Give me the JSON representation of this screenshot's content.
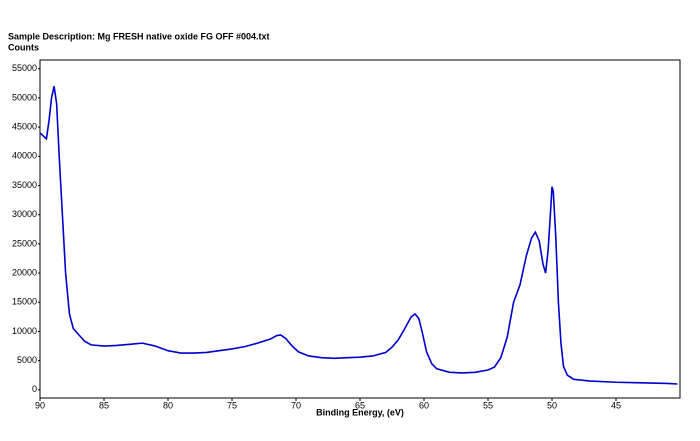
{
  "chart_data": {
    "type": "line",
    "title": "Sample Description: Mg FRESH native oxide FG OFF #004.txt",
    "ylabel": "Counts",
    "xlabel": "Binding Energy, (eV)",
    "x": [
      90,
      89.5,
      89.3,
      89.1,
      88.9,
      88.7,
      88.5,
      88.2,
      88.0,
      87.7,
      87.4,
      87,
      86.5,
      86,
      85,
      84,
      83,
      82,
      81,
      80,
      79,
      78,
      77,
      76,
      75,
      74,
      73,
      72,
      71.5,
      71.2,
      70.8,
      70.3,
      69.8,
      69,
      68,
      67,
      66,
      65,
      64,
      63,
      62.5,
      62,
      61.5,
      61,
      60.7,
      60.4,
      60.1,
      59.8,
      59.4,
      59,
      58,
      57,
      56,
      55,
      54.5,
      54,
      53.5,
      53,
      52.5,
      52,
      51.6,
      51.3,
      51,
      50.7,
      50.5,
      50.3,
      50.1,
      50.0,
      49.9,
      49.7,
      49.5,
      49.3,
      49.1,
      48.8,
      48.3,
      47,
      45,
      43,
      41,
      40.2
    ],
    "series": [
      {
        "name": "Counts",
        "color": "#0000cc",
        "values": [
          44000,
          43000,
          46000,
          50000,
          52000,
          49000,
          40000,
          28000,
          20000,
          13000,
          10500,
          9500,
          8300,
          7700,
          7500,
          7600,
          7800,
          8000,
          7500,
          6700,
          6300,
          6300,
          6400,
          6700,
          7000,
          7400,
          8000,
          8700,
          9300,
          9400,
          8800,
          7500,
          6500,
          5800,
          5500,
          5400,
          5500,
          5600,
          5800,
          6400,
          7300,
          8600,
          10500,
          12500,
          13000,
          12200,
          9500,
          6500,
          4500,
          3600,
          3000,
          2900,
          3000,
          3400,
          3900,
          5500,
          9000,
          15000,
          18000,
          23000,
          26000,
          27000,
          25500,
          21500,
          20000,
          24000,
          31000,
          34800,
          34000,
          26000,
          15000,
          8000,
          4000,
          2500,
          1800,
          1500,
          1300,
          1200,
          1100,
          1000
        ]
      }
    ],
    "xlim": [
      90,
      40
    ],
    "xticks": [
      90,
      85,
      80,
      75,
      70,
      65,
      60,
      55,
      50,
      45
    ],
    "ylim": [
      -1400,
      56500
    ],
    "yticks": [
      0,
      5000,
      10000,
      15000,
      20000,
      25000,
      30000,
      35000,
      40000,
      45000,
      50000,
      55000
    ],
    "grid": false
  }
}
